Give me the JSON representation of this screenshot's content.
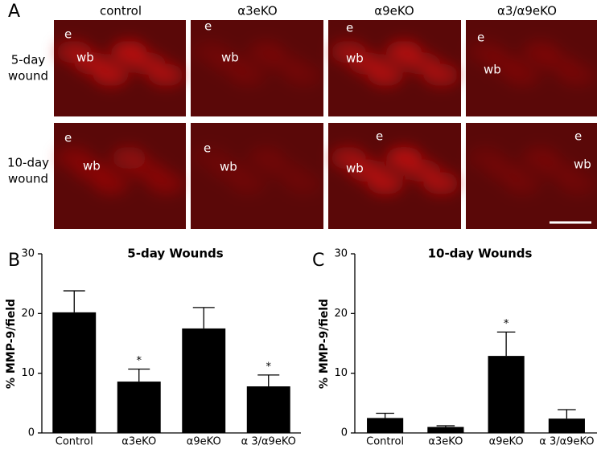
{
  "panel_a": {
    "label": "A",
    "columns": [
      "control",
      "α3eKO",
      "α9eKO",
      "α3/α9eKO"
    ],
    "rows": [
      {
        "lines": [
          "5-day",
          "wound"
        ],
        "cells": [
          [
            "e",
            "wb"
          ],
          [
            "e",
            "wb"
          ],
          [
            "e",
            "wb"
          ],
          [
            "e",
            "wb"
          ]
        ]
      },
      {
        "lines": [
          "10-day",
          "wound"
        ],
        "cells": [
          [
            "e",
            "wb"
          ],
          [
            "e",
            "wb"
          ],
          [
            "e",
            "wb"
          ],
          [
            "e",
            "wb"
          ]
        ]
      }
    ]
  },
  "chart_data": [
    {
      "type": "bar",
      "panel_label": "B",
      "title": "5-day Wounds",
      "y_label": "% MMP-9/field",
      "categories": [
        "Control",
        "α3eKO",
        "α9eKO",
        "α 3/α9eKO"
      ],
      "values": [
        20.2,
        8.6,
        17.5,
        7.8
      ],
      "errors": [
        3.6,
        2.1,
        3.5,
        1.9
      ],
      "color": "#000000",
      "annotations": [
        {
          "category": "α3eKO",
          "text": "*"
        },
        {
          "category": "α 3/α9eKO",
          "text": "*"
        }
      ],
      "ylim": [
        0,
        30
      ],
      "yticks": [
        0,
        10,
        20,
        30
      ]
    },
    {
      "type": "bar",
      "panel_label": "C",
      "title": "10-day Wounds",
      "y_label": "% MMP-9/field",
      "categories": [
        "Control",
        "α3eKO",
        "α9eKO",
        "α 3/α9eKO"
      ],
      "values": [
        2.5,
        1.0,
        12.9,
        2.4
      ],
      "errors": [
        0.8,
        0.2,
        4.0,
        1.5
      ],
      "color": "#000000",
      "annotations": [
        {
          "category": "α9eKO",
          "text": "*"
        }
      ],
      "ylim": [
        0,
        30
      ],
      "yticks": [
        0,
        10,
        20,
        30
      ]
    }
  ]
}
